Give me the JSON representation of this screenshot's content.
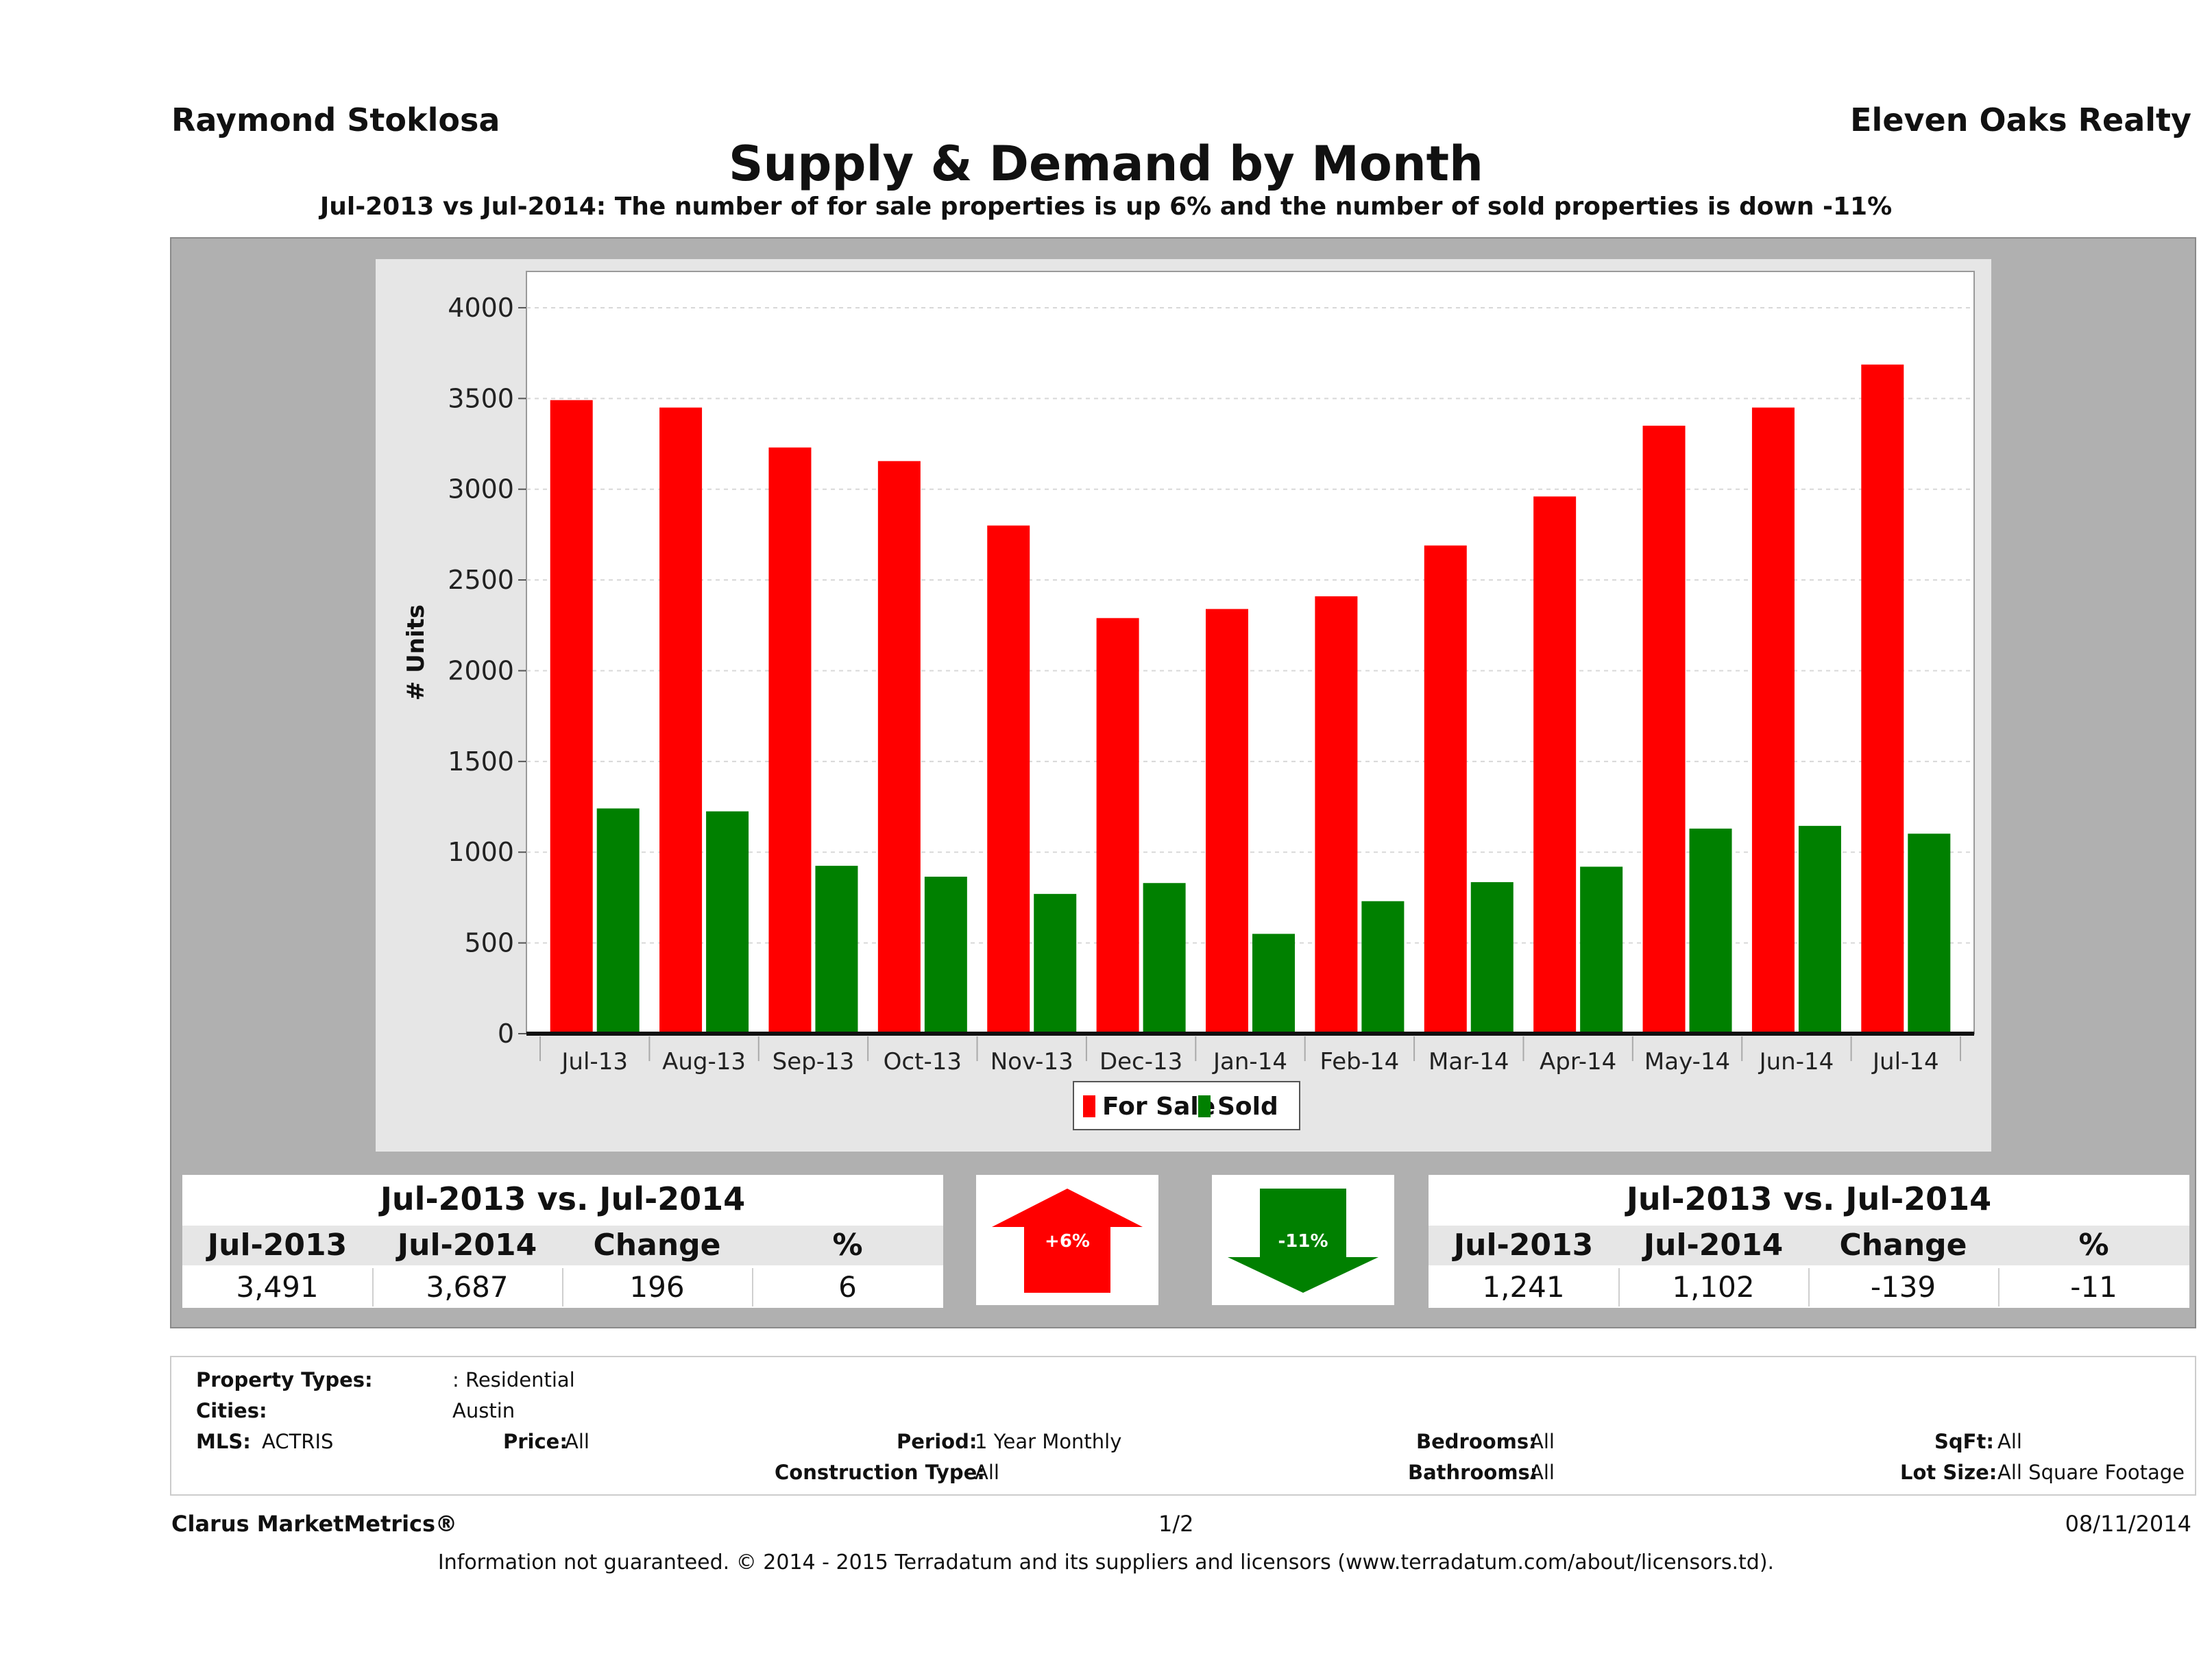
{
  "header": {
    "agent_name": "Raymond Stoklosa",
    "brokerage": "Eleven Oaks Realty",
    "title": "Supply & Demand by Month",
    "subtitle": "Jul-2013 vs Jul-2014: The number of for sale properties is up 6% and the number of sold properties is down -11%"
  },
  "chart_data": {
    "type": "bar",
    "title": "Supply & Demand by Month",
    "xlabel": "",
    "ylabel": "# Units",
    "ylim": [
      0,
      4200
    ],
    "yticks": [
      0,
      500,
      1000,
      1500,
      2000,
      2500,
      3000,
      3500,
      4000
    ],
    "grid": true,
    "legend_position": "bottom",
    "categories": [
      "Jul-13",
      "Aug-13",
      "Sep-13",
      "Oct-13",
      "Nov-13",
      "Dec-13",
      "Jan-14",
      "Feb-14",
      "Mar-14",
      "Apr-14",
      "May-14",
      "Jun-14",
      "Jul-14"
    ],
    "series": [
      {
        "name": "For Sale",
        "color": "#ff0000",
        "values": [
          3491,
          3450,
          3230,
          3155,
          2800,
          2290,
          2340,
          2410,
          2690,
          2960,
          3350,
          3450,
          3687
        ]
      },
      {
        "name": "Sold",
        "color": "#008000",
        "values": [
          1241,
          1225,
          925,
          865,
          770,
          830,
          550,
          730,
          835,
          920,
          1130,
          1145,
          1102
        ]
      }
    ]
  },
  "for_sale_summary": {
    "title": "Jul-2013 vs. Jul-2014",
    "headers": [
      "Jul-2013",
      "Jul-2014",
      "Change",
      "%"
    ],
    "values": [
      "3,491",
      "3,687",
      "196",
      "6"
    ],
    "arrow_label": "+6%",
    "arrow_color": "#ff0000"
  },
  "sold_summary": {
    "title": "Jul-2013 vs. Jul-2014",
    "headers": [
      "Jul-2013",
      "Jul-2014",
      "Change",
      "%"
    ],
    "values": [
      "1,241",
      "1,102",
      "-139",
      "-11"
    ],
    "arrow_label": "-11%",
    "arrow_color": "#008000"
  },
  "filters": {
    "property_types_label": "Property Types:",
    "property_types_value": ": Residential",
    "cities_label": "Cities:",
    "cities_value": "Austin",
    "mls_label": "MLS:",
    "mls_value": "ACTRIS",
    "price_label": "Price:",
    "price_value": "All",
    "period_label": "Period:",
    "period_value": "1 Year Monthly",
    "construction_label": "Construction Type:",
    "construction_value": "All",
    "bedrooms_label": "Bedrooms:",
    "bedrooms_value": "All",
    "bathrooms_label": "Bathrooms:",
    "bathrooms_value": "All",
    "sqft_label": "SqFt:",
    "sqft_value": "All",
    "lot_label": "Lot Size:",
    "lot_value": "All Square Footage"
  },
  "footer": {
    "brand": "Clarus MarketMetrics®",
    "page": "1/2",
    "date": "08/11/2014",
    "disclaimer": "Information not guaranteed. © 2014 - 2015 Terradatum and its suppliers and licensors (www.terradatum.com/about/licensors.td)."
  }
}
